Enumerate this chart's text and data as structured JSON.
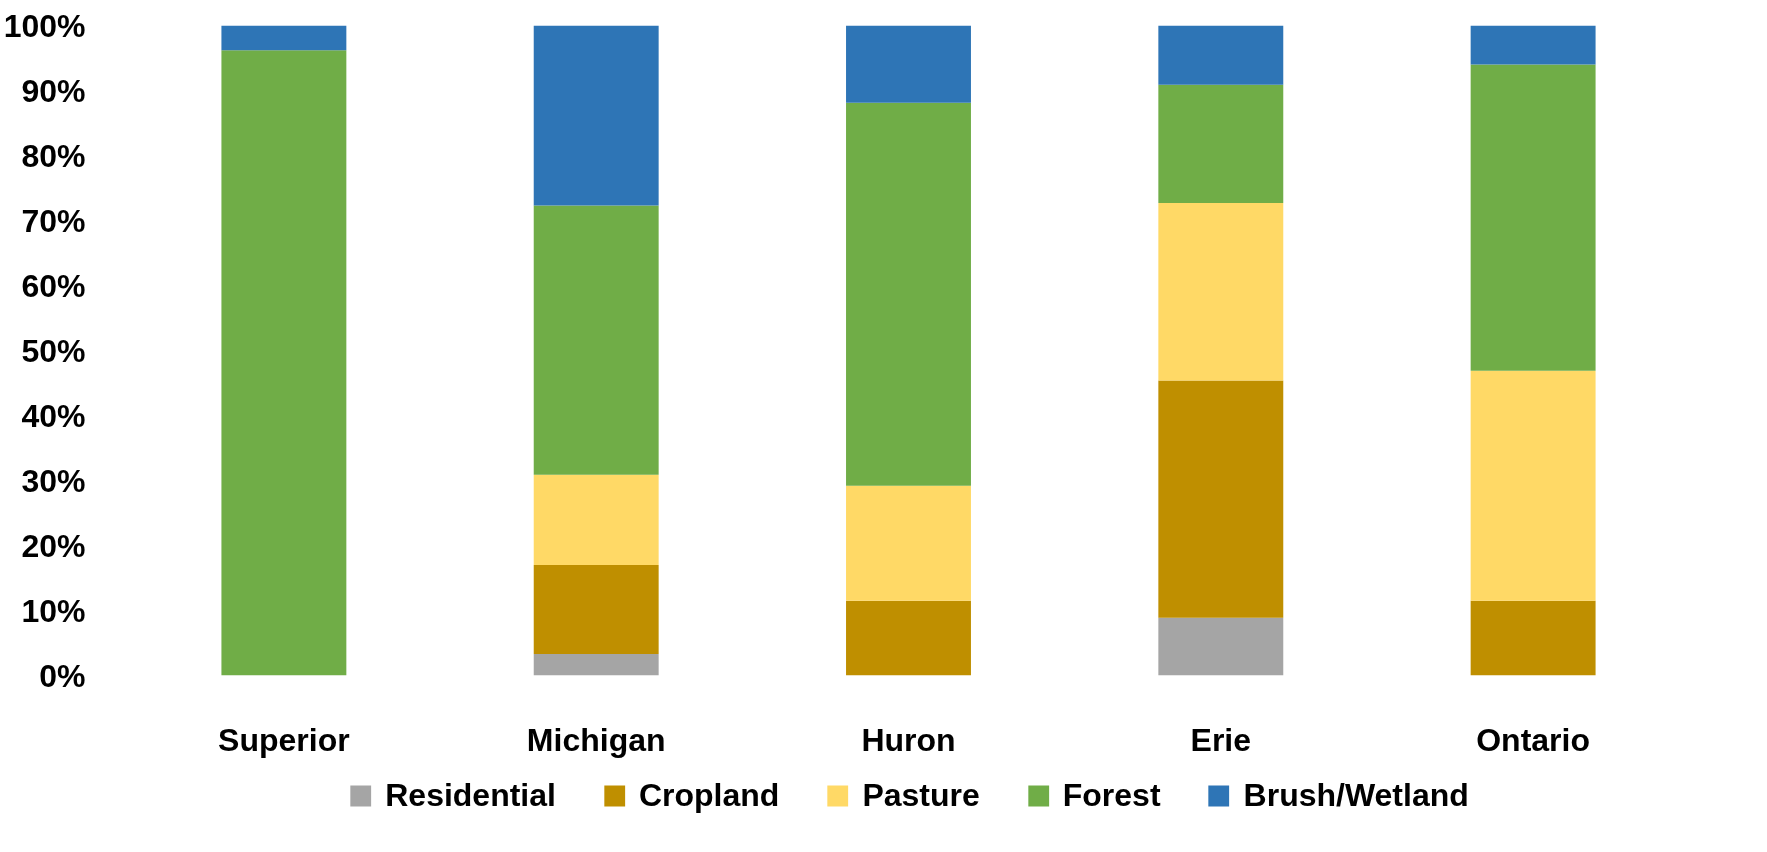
{
  "chart_data": {
    "type": "bar",
    "stacked": true,
    "categories": [
      "Superior",
      "Michigan",
      "Huron",
      "Erie",
      "Ontario"
    ],
    "series": [
      {
        "name": "Residential",
        "color": "#a5a5a5",
        "values": [
          0,
          3.3,
          0,
          8.9,
          0
        ]
      },
      {
        "name": "Cropland",
        "color": "#bf8f00",
        "values": [
          0,
          13.7,
          11.5,
          36.5,
          11.5
        ]
      },
      {
        "name": "Pasture",
        "color": "#ffd966",
        "values": [
          0,
          13.9,
          17.7,
          27.3,
          35.4
        ]
      },
      {
        "name": "Forest",
        "color": "#70ad47",
        "values": [
          96.2,
          41.4,
          58.9,
          18.2,
          47.1
        ]
      },
      {
        "name": "Brush/Wetland",
        "color": "#2e75b6",
        "values": [
          3.8,
          27.7,
          11.9,
          9.1,
          6.0
        ]
      }
    ],
    "ylim": [
      0,
      100
    ],
    "yticks": [
      {
        "value": 0,
        "label": "0%"
      },
      {
        "value": 10,
        "label": "10%"
      },
      {
        "value": 20,
        "label": "20%"
      },
      {
        "value": 30,
        "label": "30%"
      },
      {
        "value": 40,
        "label": "40%"
      },
      {
        "value": 50,
        "label": "50%"
      },
      {
        "value": 60,
        "label": "60%"
      },
      {
        "value": 70,
        "label": "70%"
      },
      {
        "value": 80,
        "label": "80%"
      },
      {
        "value": 90,
        "label": "90%"
      },
      {
        "value": 100,
        "label": "100%"
      }
    ],
    "grid": false,
    "legend": "bottom"
  }
}
